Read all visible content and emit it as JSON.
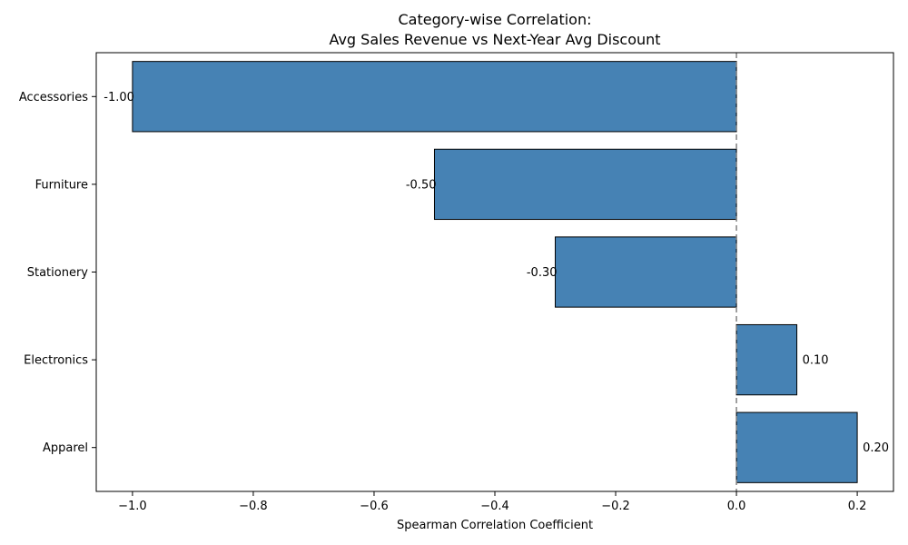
{
  "chart_data": {
    "type": "bar",
    "orientation": "horizontal",
    "title": [
      "Category-wise Correlation:",
      "Avg Sales Revenue vs Next-Year Avg Discount"
    ],
    "xlabel": "Spearman Correlation Coefficient",
    "ylabel": "",
    "categories": [
      "Accessories",
      "Furniture",
      "Stationery",
      "Electronics",
      "Apparel"
    ],
    "values": [
      -1.0,
      -0.5,
      -0.3,
      0.1,
      0.2
    ],
    "data_labels": [
      "-1.00",
      "-0.50",
      "-0.30",
      "0.10",
      "0.20"
    ],
    "xlim": [
      -1.06,
      0.26
    ],
    "xticks": [
      -1.0,
      -0.8,
      -0.6,
      -0.4,
      -0.2,
      0.0,
      0.2
    ],
    "xtick_labels": [
      "−1.0",
      "−0.8",
      "−0.6",
      "−0.4",
      "−0.2",
      "0.0",
      "0.2"
    ],
    "reference_line": 0.0,
    "grid": false,
    "bar_color": "#4682b4",
    "bar_edge_color": "#000000",
    "reference_line_color": "#808080"
  }
}
